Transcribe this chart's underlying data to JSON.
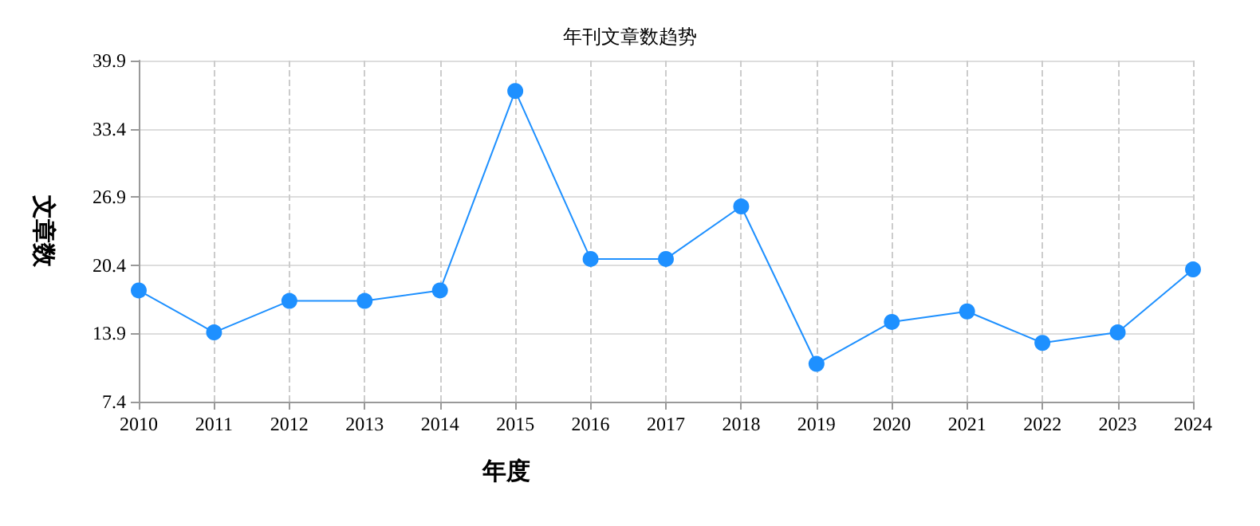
{
  "chart_data": {
    "type": "line",
    "title": "年刊文章数趋势",
    "xlabel": "年度",
    "ylabel": "文章数",
    "categories": [
      "2010",
      "2011",
      "2012",
      "2013",
      "2014",
      "2015",
      "2016",
      "2017",
      "2018",
      "2019",
      "2020",
      "2021",
      "2022",
      "2023",
      "2024"
    ],
    "series": [
      {
        "color": "#1e90ff",
        "values": [
          18,
          14,
          17,
          17,
          18,
          37,
          21,
          21,
          26,
          11,
          15,
          16,
          13,
          14,
          20
        ]
      }
    ],
    "ylim": [
      7.4,
      39.9
    ],
    "yticks": [
      7.4,
      13.9,
      20.4,
      26.9,
      33.4,
      39.9
    ],
    "grid": true,
    "marker": "circle",
    "line_style": "solid"
  }
}
